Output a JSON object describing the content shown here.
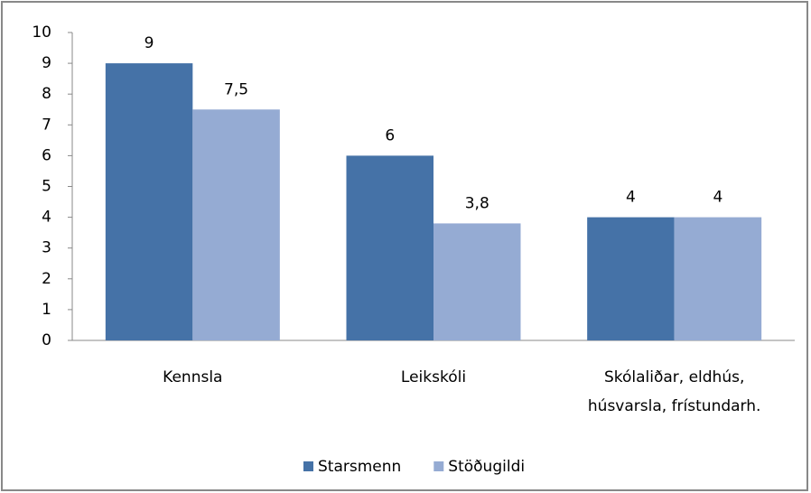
{
  "chart_data": {
    "type": "bar",
    "categories": [
      "Kennsla",
      "Leikskóli",
      "Skólaliðar, eldhús, húsvarsla, frístundarh."
    ],
    "series": [
      {
        "name": "Starsmenn",
        "color": "#4572a7",
        "values": [
          9,
          6,
          4
        ],
        "value_labels": [
          "9",
          "6",
          "4"
        ]
      },
      {
        "name": "Stöðugildi",
        "color": "#95abd3",
        "values": [
          7.5,
          3.8,
          4
        ],
        "value_labels": [
          "7,5",
          "3,8",
          "4"
        ]
      }
    ],
    "ylim": [
      0,
      10
    ],
    "yticks": [
      0,
      1,
      2,
      3,
      4,
      5,
      6,
      7,
      8,
      9,
      10
    ],
    "grid": false,
    "legend": "bottom"
  }
}
